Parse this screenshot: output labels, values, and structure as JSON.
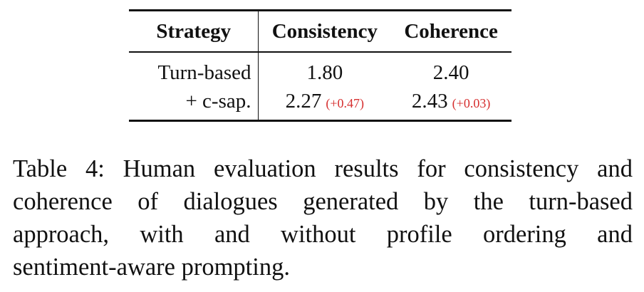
{
  "table": {
    "headers": [
      "Strategy",
      "Consistency",
      "Coherence"
    ],
    "rows": [
      {
        "strategy": "Turn-based",
        "consistency": "1.80",
        "consistency_delta": "",
        "coherence": "2.40",
        "coherence_delta": ""
      },
      {
        "strategy": "+ c-sap.",
        "consistency": "2.27",
        "consistency_delta": "(+0.47)",
        "coherence": "2.43",
        "coherence_delta": "(+0.03)"
      }
    ]
  },
  "caption": {
    "lines": [
      "Table 4: Human evaluation results for consistency and",
      "coherence of dialogues generated by the turn-based",
      "approach, with and without profile ordering and",
      "sentiment-aware prompting."
    ]
  },
  "colors": {
    "delta": "#d62f2f",
    "text": "#111111"
  }
}
